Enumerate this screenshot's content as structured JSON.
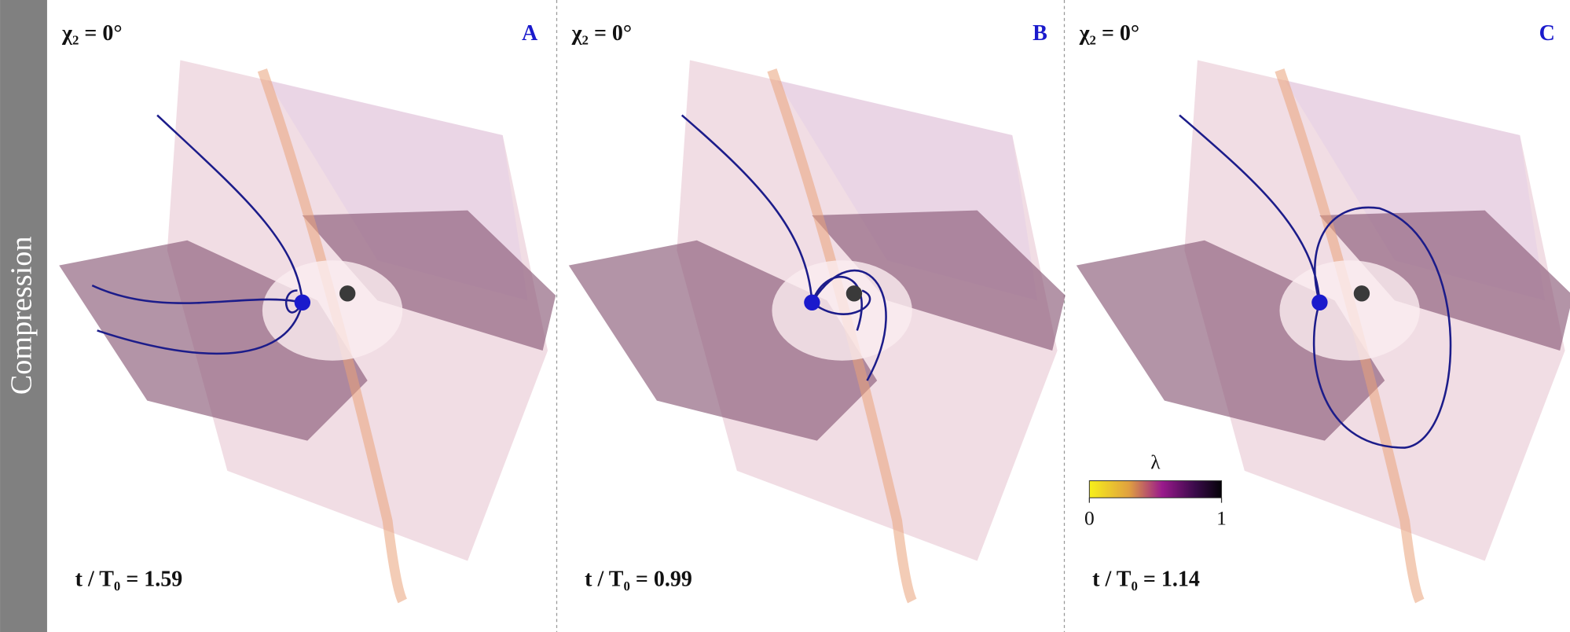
{
  "sidebar": {
    "label": "Compression"
  },
  "panels": [
    {
      "letter": "A",
      "angle": "χ₂ = 0°",
      "time": "t / T₀ = 1.59"
    },
    {
      "letter": "B",
      "angle": "χ₂ = 0°",
      "time": "t / T₀ = 0.99"
    },
    {
      "letter": "C",
      "angle": "χ₂ = 0°",
      "time": "t / T₀ = 1.14"
    }
  ],
  "colorbar": {
    "label": "λ",
    "ticks": [
      0,
      1
    ]
  }
}
